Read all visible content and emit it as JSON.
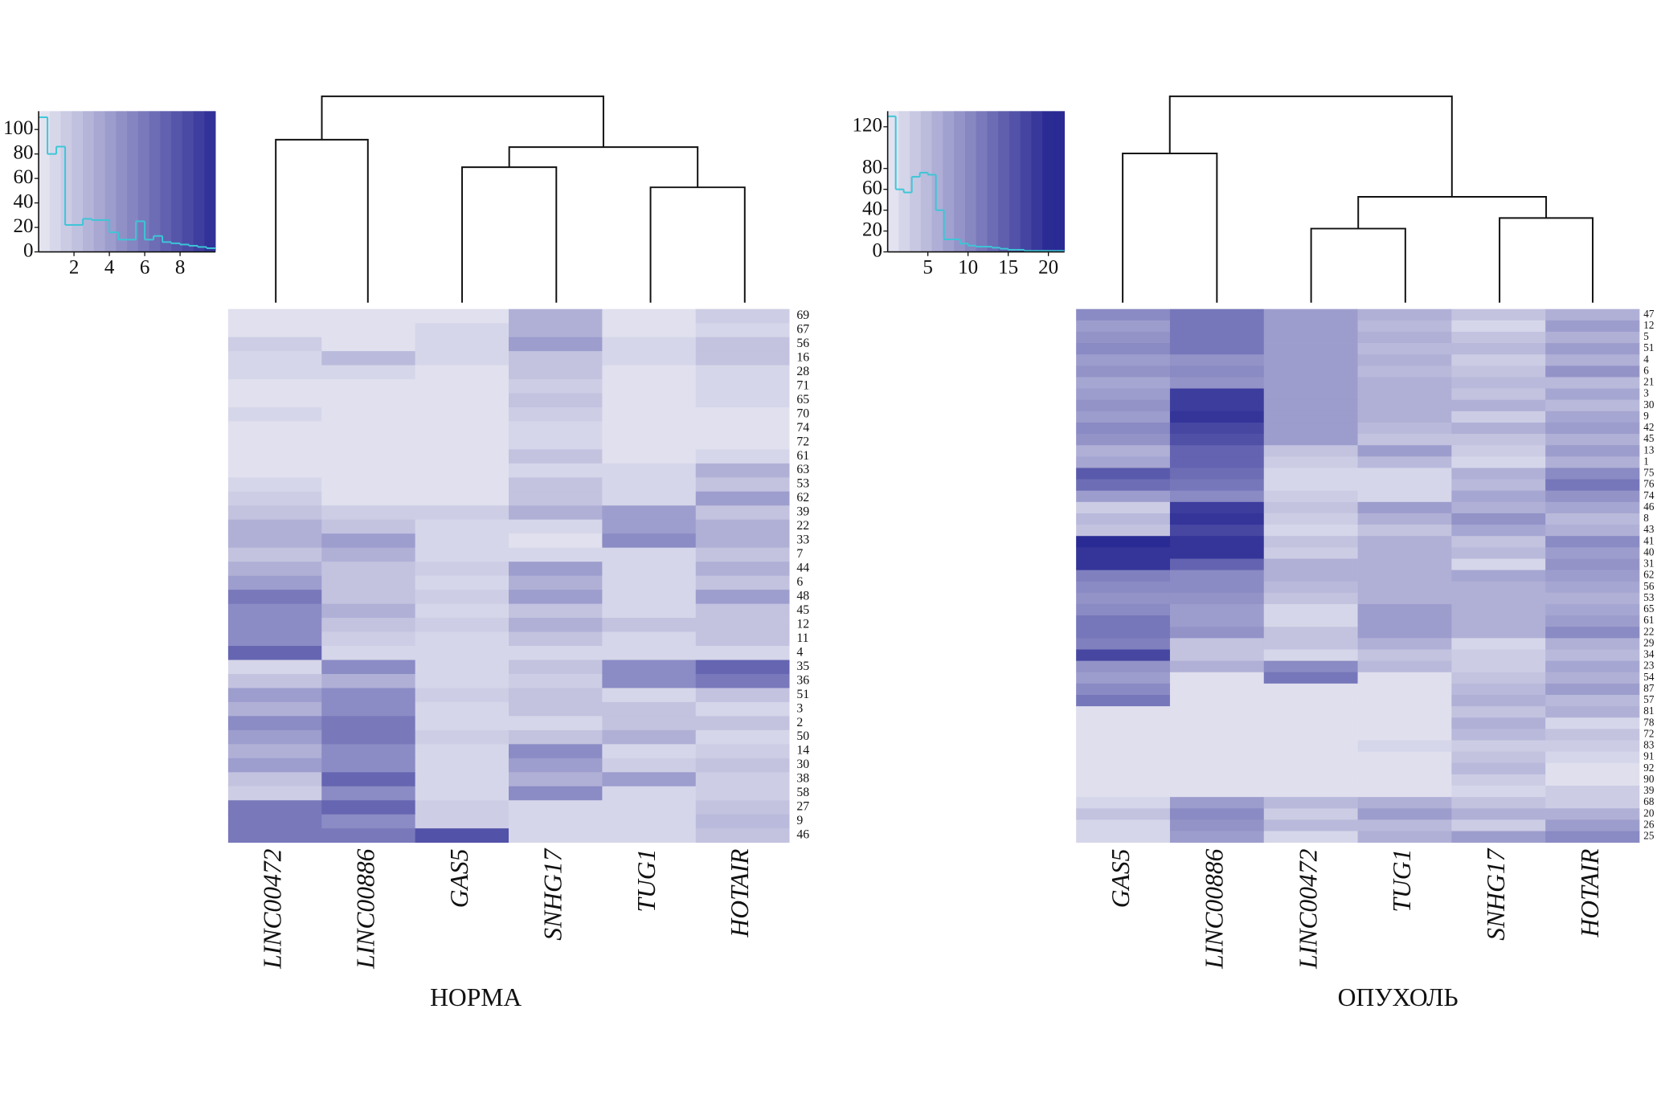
{
  "chart_data": [
    {
      "type": "heatmap",
      "title": "НОРМА",
      "columns": [
        "LINC00472",
        "LINC00886",
        "GAS5",
        "SNHG17",
        "TUG1",
        "HOTAIR"
      ],
      "rows": [
        "69",
        "67",
        "56",
        "16",
        "28",
        "71",
        "65",
        "70",
        "74",
        "72",
        "61",
        "63",
        "53",
        "62",
        "39",
        "22",
        "33",
        "7",
        "44",
        "6",
        "48",
        "45",
        "12",
        "11",
        "4",
        "35",
        "36",
        "51",
        "3",
        "2",
        "50",
        "14",
        "30",
        "38",
        "58",
        "27",
        "9",
        "46"
      ],
      "values": [
        [
          0.5,
          0.5,
          0.5,
          3,
          0.5,
          1.5
        ],
        [
          0.5,
          0.5,
          1,
          3,
          0.5,
          1
        ],
        [
          1.5,
          0.5,
          1,
          4,
          1,
          2
        ],
        [
          1,
          2.5,
          1,
          2,
          1,
          2
        ],
        [
          1,
          1,
          0.5,
          2,
          0.5,
          1
        ],
        [
          0.5,
          0.5,
          0.5,
          1.5,
          0.5,
          1
        ],
        [
          0.5,
          0.5,
          0.5,
          2,
          0.5,
          1
        ],
        [
          1,
          0.5,
          0.5,
          1.5,
          0.5,
          0.5
        ],
        [
          0.5,
          0.5,
          0.5,
          1,
          0.5,
          0.5
        ],
        [
          0.5,
          0.5,
          0.5,
          1,
          0.5,
          0.5
        ],
        [
          0.5,
          0.5,
          0.5,
          2,
          0.5,
          1
        ],
        [
          0.5,
          0.5,
          0.5,
          1,
          1,
          3
        ],
        [
          1,
          0.5,
          0.5,
          2,
          1,
          2
        ],
        [
          1.5,
          0.5,
          0.5,
          2,
          1,
          4
        ],
        [
          2,
          1.5,
          1.5,
          3,
          4,
          2
        ],
        [
          3,
          2,
          1,
          1,
          4,
          3
        ],
        [
          3,
          4,
          1,
          0.5,
          5,
          3
        ],
        [
          2,
          3,
          1,
          1,
          1,
          2
        ],
        [
          3,
          2,
          1.5,
          4,
          1,
          3
        ],
        [
          4,
          2,
          1,
          3,
          1,
          2
        ],
        [
          6,
          2,
          1.5,
          4,
          1,
          4
        ],
        [
          5,
          3,
          1,
          2,
          1,
          2
        ],
        [
          5,
          2,
          1.5,
          3,
          2,
          2
        ],
        [
          5,
          1.5,
          1,
          2,
          1,
          2
        ],
        [
          7,
          1,
          1,
          1,
          1,
          1
        ],
        [
          1,
          5,
          1,
          2,
          5,
          7
        ],
        [
          2,
          3,
          1,
          1.5,
          5,
          6
        ],
        [
          4,
          5,
          1.5,
          2,
          1,
          2
        ],
        [
          3,
          5,
          1,
          2,
          2,
          1
        ],
        [
          5,
          6,
          1,
          1,
          2,
          2
        ],
        [
          4,
          6,
          1.5,
          2,
          3,
          1
        ],
        [
          3,
          5,
          1,
          5,
          1,
          1.5
        ],
        [
          4,
          5,
          1,
          4,
          1.5,
          2
        ],
        [
          2,
          7,
          1,
          3,
          4,
          1.5
        ],
        [
          1.5,
          5,
          1,
          5,
          1,
          1.5
        ],
        [
          6,
          7,
          1.5,
          1,
          1,
          2
        ],
        [
          6,
          5,
          1.5,
          1,
          1,
          2.5
        ],
        [
          6,
          6,
          8,
          1,
          1,
          2
        ]
      ],
      "zlim": [
        0,
        10
      ],
      "colors": [
        "#e9e9f3",
        "#2c2c96"
      ],
      "color_key": {
        "type": "histogram",
        "color": "#3cc6d6",
        "bins": [
          0,
          0.5,
          1,
          1.5,
          2,
          2.5,
          3,
          3.5,
          4,
          4.5,
          5,
          5.5,
          6,
          6.5,
          7,
          7.5,
          8,
          8.5,
          9,
          9.5,
          10
        ],
        "counts": [
          110,
          80,
          86,
          22,
          22,
          27,
          26,
          26,
          16,
          10,
          10,
          25,
          10,
          13,
          8,
          7,
          6,
          5,
          4,
          3
        ],
        "xlim": [
          0,
          10
        ],
        "xticks": [
          2,
          4,
          6,
          8
        ],
        "ylim": [
          0,
          115
        ],
        "yticks": [
          0,
          20,
          40,
          60,
          80,
          100
        ]
      }
    },
    {
      "type": "heatmap",
      "title": "ОПУХОЛЬ",
      "columns": [
        "GAS5",
        "LINC00886",
        "LINC00472",
        "TUG1",
        "SNHG17",
        "HOTAIR"
      ],
      "rows": [
        "47",
        "12",
        "5",
        "51",
        "4",
        "6",
        "21",
        "3",
        "30",
        "9",
        "42",
        "45",
        "13",
        "1",
        "75",
        "76",
        "74",
        "46",
        "8",
        "43",
        "41",
        "40",
        "31",
        "62",
        "56",
        "53",
        "65",
        "61",
        "22",
        "29",
        "34",
        "23",
        "54",
        "87",
        "57",
        "81",
        "78",
        "72",
        "83",
        "91",
        "92",
        "90",
        "39",
        "68",
        "20",
        "26",
        "25"
      ],
      "values": [
        [
          10,
          12,
          8,
          6,
          4,
          6
        ],
        [
          8,
          12,
          8,
          5,
          2,
          8
        ],
        [
          9,
          12,
          8,
          6,
          4,
          6
        ],
        [
          10,
          12,
          8,
          5,
          5,
          8
        ],
        [
          8,
          9,
          8,
          6,
          3,
          6
        ],
        [
          9,
          10,
          8,
          5,
          4,
          9
        ],
        [
          7,
          9,
          8,
          6,
          5,
          5
        ],
        [
          8,
          18,
          8,
          6,
          4,
          7
        ],
        [
          9,
          18,
          8,
          6,
          6,
          5
        ],
        [
          8,
          19,
          8,
          6,
          3,
          7
        ],
        [
          10,
          17,
          8,
          5,
          6,
          8
        ],
        [
          9,
          16,
          8,
          4,
          4,
          6
        ],
        [
          6,
          14,
          4,
          8,
          3,
          8
        ],
        [
          7,
          14,
          3,
          5,
          2,
          6
        ],
        [
          15,
          13,
          2,
          2,
          6,
          10
        ],
        [
          13,
          12,
          2,
          2,
          5,
          12
        ],
        [
          8,
          10,
          3,
          2,
          7,
          9
        ],
        [
          3,
          18,
          4,
          8,
          6,
          7
        ],
        [
          5,
          19,
          3,
          6,
          9,
          5
        ],
        [
          4,
          17,
          2,
          4,
          7,
          6
        ],
        [
          20,
          19,
          4,
          6,
          4,
          10
        ],
        [
          19,
          19,
          3,
          6,
          5,
          8
        ],
        [
          19,
          14,
          6,
          6,
          2,
          9
        ],
        [
          11,
          10,
          6,
          6,
          7,
          8
        ],
        [
          10,
          10,
          5,
          6,
          6,
          7
        ],
        [
          9,
          9,
          4,
          6,
          6,
          6
        ],
        [
          10,
          8,
          2,
          8,
          6,
          7
        ],
        [
          12,
          8,
          2,
          8,
          6,
          8
        ],
        [
          12,
          9,
          4,
          8,
          6,
          10
        ],
        [
          11,
          4,
          4,
          6,
          2,
          6
        ],
        [
          17,
          4,
          2,
          4,
          3,
          5
        ],
        [
          9,
          6,
          10,
          5,
          3,
          7
        ],
        [
          8,
          1,
          12,
          1,
          4,
          6
        ],
        [
          10,
          1,
          1,
          1,
          5,
          8
        ],
        [
          12,
          1,
          1,
          1,
          6,
          5
        ],
        [
          1,
          1,
          1,
          1,
          4,
          6
        ],
        [
          1,
          1,
          1,
          1,
          6,
          2
        ],
        [
          1,
          1,
          1,
          1,
          5,
          4
        ],
        [
          1,
          1,
          1,
          2,
          3,
          3
        ],
        [
          1,
          1,
          1,
          1,
          4,
          2
        ],
        [
          1,
          1,
          1,
          1,
          5,
          1
        ],
        [
          1,
          1,
          1,
          1,
          3,
          1
        ],
        [
          1,
          1,
          1,
          1,
          2,
          3
        ],
        [
          2,
          8,
          5,
          6,
          4,
          3
        ],
        [
          4,
          10,
          3,
          8,
          6,
          6
        ],
        [
          2,
          9,
          5,
          5,
          3,
          8
        ],
        [
          2,
          8,
          2,
          6,
          8,
          10
        ]
      ],
      "zlim": [
        0,
        20
      ],
      "colors": [
        "#e9e9f3",
        "#2a2a94"
      ],
      "color_key": {
        "type": "histogram",
        "color": "#3cc6d6",
        "bins": [
          0,
          1,
          2,
          3,
          4,
          5,
          6,
          7,
          8,
          9,
          10,
          11,
          12,
          13,
          14,
          15,
          16,
          17,
          18,
          19,
          20,
          21,
          22
        ],
        "counts": [
          130,
          60,
          57,
          72,
          76,
          74,
          40,
          12,
          12,
          8,
          6,
          5,
          5,
          4,
          3,
          2,
          2,
          1,
          1,
          1,
          1,
          1
        ],
        "xlim": [
          0,
          22
        ],
        "xticks": [
          5,
          10,
          15,
          20
        ],
        "ylim": [
          0,
          135
        ],
        "yticks": [
          0,
          20,
          40,
          60,
          80,
          120
        ]
      }
    }
  ]
}
